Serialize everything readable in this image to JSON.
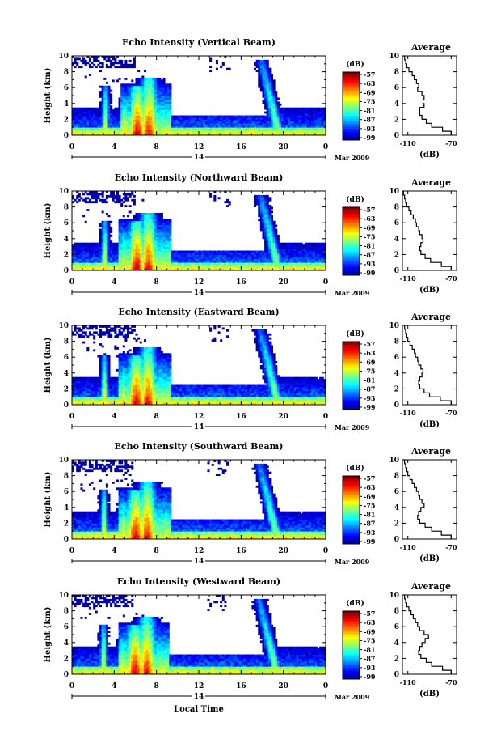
{
  "chart_data": [
    {
      "type": "heatmap",
      "title": "Echo Intensity (Vertical Beam)",
      "ylabel": "Height (km)",
      "x_ticks": [
        "0",
        "4",
        "8",
        "12",
        "16",
        "20",
        "0"
      ],
      "y_ticks": [
        "0",
        "2",
        "4",
        "6",
        "8",
        "10"
      ],
      "xlim": [
        0,
        24
      ],
      "ylim": [
        0,
        10
      ],
      "date_day": "14",
      "date_month": "Mar 2009",
      "colorbar": {
        "label": "(dB)",
        "ticks": [
          "-57",
          "-63",
          "-69",
          "-75",
          "-81",
          "-87",
          "-93",
          "-99"
        ]
      },
      "profile": {
        "title": "Average",
        "xlabel": "(dB)",
        "x_ticks": [
          "-110",
          "-70"
        ],
        "xlim": [
          -115,
          -65
        ],
        "heights": [
          0,
          0.5,
          1,
          1.5,
          2,
          2.5,
          3,
          3.5,
          4,
          4.5,
          5,
          5.5,
          6,
          6.5,
          7,
          7.5,
          8,
          8.5,
          9,
          9.5,
          10
        ],
        "values": [
          -70,
          -78,
          -88,
          -93,
          -97,
          -99,
          -99,
          -95,
          -96,
          -95,
          -97,
          -101,
          -100,
          -102,
          -104,
          -106,
          -109,
          -111,
          -112,
          -113,
          -114
        ]
      }
    },
    {
      "type": "heatmap",
      "title": "Echo Intensity (Northward Beam)",
      "ylabel": "Height (km)",
      "x_ticks": [
        "0",
        "4",
        "8",
        "12",
        "16",
        "20",
        "0"
      ],
      "y_ticks": [
        "0",
        "2",
        "4",
        "6",
        "8",
        "10"
      ],
      "xlim": [
        0,
        24
      ],
      "ylim": [
        0,
        10
      ],
      "date_day": "14",
      "date_month": "Mar 2009",
      "colorbar": {
        "label": "(dB)",
        "ticks": [
          "-57",
          "-63",
          "-69",
          "-75",
          "-81",
          "-87",
          "-93",
          "-99"
        ]
      },
      "profile": {
        "title": "Average",
        "xlabel": "(dB)",
        "x_ticks": [
          "-110",
          "-70"
        ],
        "xlim": [
          -115,
          -65
        ],
        "heights": [
          0,
          0.5,
          1,
          1.5,
          2,
          2.5,
          3,
          3.5,
          4,
          4.5,
          5,
          5.5,
          6,
          6.5,
          7,
          7.5,
          8,
          8.5,
          9,
          9.5,
          10
        ],
        "values": [
          -70,
          -79,
          -89,
          -94,
          -98,
          -99,
          -98,
          -96,
          -97,
          -99,
          -100,
          -102,
          -103,
          -105,
          -107,
          -109,
          -111,
          -112,
          -113,
          -114,
          -114
        ]
      }
    },
    {
      "type": "heatmap",
      "title": "Echo Intensity (Eastward Beam)",
      "ylabel": "Height (km)",
      "x_ticks": [
        "0",
        "4",
        "8",
        "12",
        "16",
        "20",
        "0"
      ],
      "y_ticks": [
        "0",
        "2",
        "4",
        "6",
        "8",
        "10"
      ],
      "xlim": [
        0,
        24
      ],
      "ylim": [
        0,
        10
      ],
      "date_day": "14",
      "date_month": "Mar 2009",
      "colorbar": {
        "label": "(dB)",
        "ticks": [
          "-57",
          "-63",
          "-69",
          "-75",
          "-81",
          "-87",
          "-93",
          "-99"
        ]
      },
      "profile": {
        "title": "Average",
        "xlabel": "(dB)",
        "x_ticks": [
          "-110",
          "-70"
        ],
        "xlim": [
          -115,
          -65
        ],
        "heights": [
          0,
          0.5,
          1,
          1.5,
          2,
          2.5,
          3,
          3.5,
          4,
          4.5,
          5,
          5.5,
          6,
          6.5,
          7,
          7.5,
          8,
          8.5,
          9,
          9.5,
          10
        ],
        "values": [
          -70,
          -80,
          -90,
          -95,
          -99,
          -100,
          -99,
          -97,
          -96,
          -98,
          -100,
          -101,
          -103,
          -104,
          -106,
          -108,
          -110,
          -111,
          -112,
          -113,
          -114
        ]
      }
    },
    {
      "type": "heatmap",
      "title": "Echo Intensity (Southward Beam)",
      "ylabel": "Height (km)",
      "x_ticks": [
        "0",
        "4",
        "8",
        "12",
        "16",
        "20",
        "0"
      ],
      "y_ticks": [
        "0",
        "2",
        "4",
        "6",
        "8",
        "10"
      ],
      "xlim": [
        0,
        24
      ],
      "ylim": [
        0,
        10
      ],
      "date_day": "14",
      "date_month": "Mar 2009",
      "colorbar": {
        "label": "(dB)",
        "ticks": [
          "-57",
          "-63",
          "-69",
          "-75",
          "-81",
          "-87",
          "-93",
          "-99"
        ]
      },
      "profile": {
        "title": "Average",
        "xlabel": "(dB)",
        "x_ticks": [
          "-110",
          "-70"
        ],
        "xlim": [
          -115,
          -65
        ],
        "heights": [
          0,
          0.5,
          1,
          1.5,
          2,
          2.5,
          3,
          3.5,
          4,
          4.5,
          5,
          5.5,
          6,
          6.5,
          7,
          7.5,
          8,
          8.5,
          9,
          9.5,
          10
        ],
        "values": [
          -70,
          -79,
          -88,
          -94,
          -99,
          -101,
          -100,
          -98,
          -95,
          -97,
          -99,
          -100,
          -102,
          -104,
          -106,
          -108,
          -110,
          -111,
          -112,
          -113,
          -114
        ]
      }
    },
    {
      "type": "heatmap",
      "title": "Echo Intensity (Westward Beam)",
      "ylabel": "Height (km)",
      "xlabel": "Local Time",
      "x_ticks": [
        "0",
        "4",
        "8",
        "12",
        "16",
        "20",
        "0"
      ],
      "y_ticks": [
        "0",
        "2",
        "4",
        "6",
        "8",
        "10"
      ],
      "xlim": [
        0,
        24
      ],
      "ylim": [
        0,
        10
      ],
      "date_day": "14",
      "date_month": "Mar 2009",
      "colorbar": {
        "label": "(dB)",
        "ticks": [
          "-57",
          "-63",
          "-69",
          "-75",
          "-81",
          "-87",
          "-93",
          "-99"
        ]
      },
      "profile": {
        "title": "Average",
        "xlabel": "(dB)",
        "x_ticks": [
          "-110",
          "-70"
        ],
        "xlim": [
          -115,
          -65
        ],
        "heights": [
          0,
          0.5,
          1,
          1.5,
          2,
          2.5,
          3,
          3.5,
          4,
          4.5,
          5,
          5.5,
          6,
          6.5,
          7,
          7.5,
          8,
          8.5,
          9,
          9.5,
          10
        ],
        "values": [
          -70,
          -78,
          -88,
          -93,
          -98,
          -100,
          -99,
          -97,
          -94,
          -91,
          -95,
          -99,
          -101,
          -103,
          -105,
          -107,
          -109,
          -111,
          -112,
          -113,
          -114
        ]
      }
    }
  ]
}
